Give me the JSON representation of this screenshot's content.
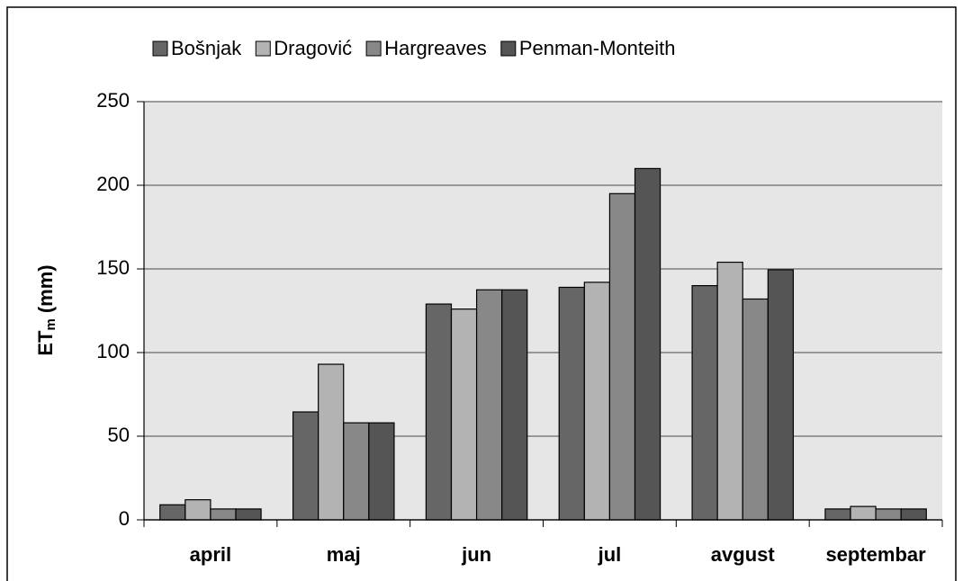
{
  "chart_data": {
    "type": "bar",
    "y_label": {
      "main": "ET",
      "sub": "m",
      "unit": "(mm)"
    },
    "categories": [
      "april",
      "maj",
      "jun",
      "jul",
      "avgust",
      "septembar"
    ],
    "series": [
      {
        "name": "Bošnjak",
        "color": "#666666",
        "values": [
          9,
          64.5,
          129,
          139,
          140,
          6.5
        ]
      },
      {
        "name": "Dragović",
        "color": "#b3b3b3",
        "values": [
          12,
          93,
          126,
          142,
          154,
          8
        ]
      },
      {
        "name": "Hargreaves",
        "color": "#888888",
        "values": [
          6.5,
          58,
          137.5,
          195,
          132,
          6.5
        ]
      },
      {
        "name": "Penman-Monteith",
        "color": "#555555",
        "values": [
          6.5,
          58,
          137.5,
          210,
          149.5,
          6.5
        ]
      }
    ],
    "ylim": [
      0,
      250
    ],
    "yticks": [
      0,
      50,
      100,
      150,
      200,
      250
    ],
    "grid": true,
    "legend": "top"
  }
}
